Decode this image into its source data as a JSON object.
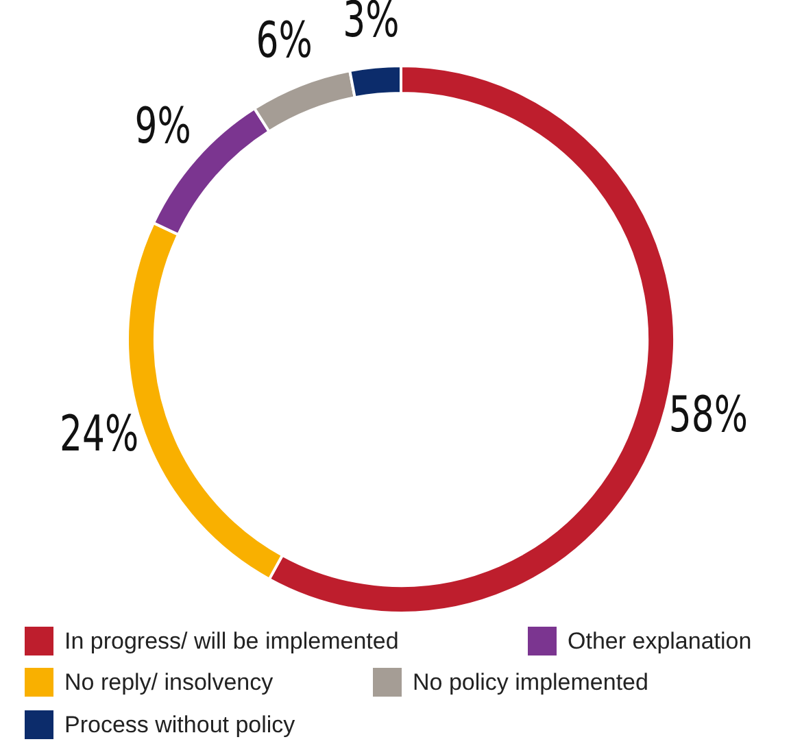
{
  "chart_data": {
    "type": "donut",
    "categories": [
      "In progress/ will be implemented",
      "No reply/ insolvency",
      "Other explanation",
      "No policy implemented",
      "Process without policy"
    ],
    "values": [
      58,
      24,
      9,
      6,
      3
    ],
    "colors": [
      "#be1e2d",
      "#f9b000",
      "#7b3590",
      "#a59d95",
      "#0c2c6b"
    ],
    "value_labels": [
      "58%",
      "24%",
      "9%",
      "6%",
      "3%"
    ],
    "legend": "bottom"
  }
}
